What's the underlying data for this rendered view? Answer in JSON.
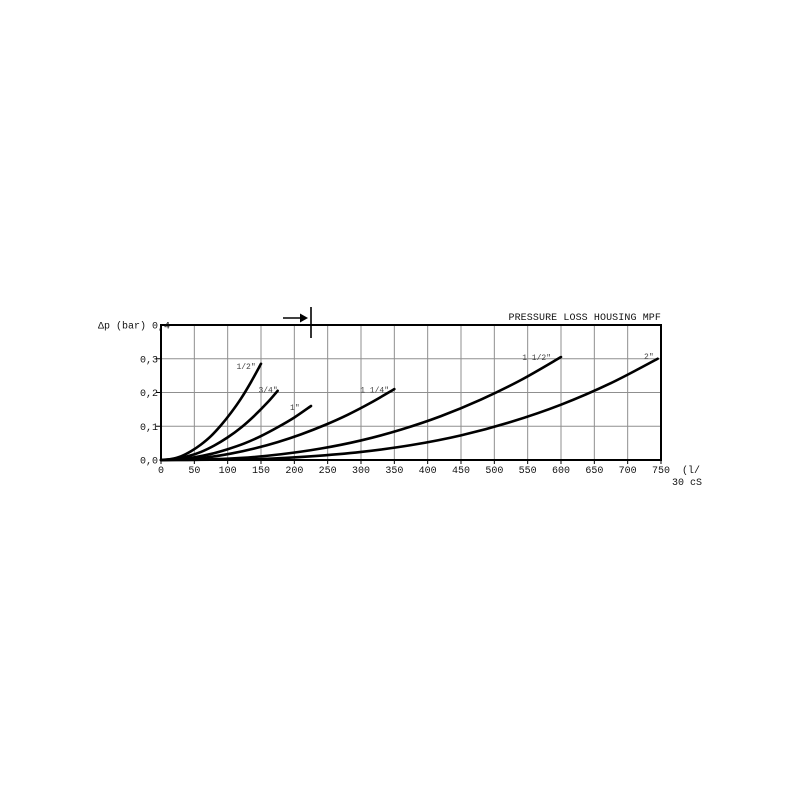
{
  "page": {
    "background": "#ffffff"
  },
  "chart_data": {
    "type": "line",
    "title": "PRESSURE LOSS HOUSING MPF",
    "ylabel": "Δp (bar)",
    "x_unit_note_line1": "(l/",
    "x_unit_note_line2": "30 cS",
    "xlim": [
      0,
      750
    ],
    "ylim": [
      0,
      0.4
    ],
    "grid": true,
    "legend_position": "inline-curve-labels",
    "x_ticks": [
      0,
      50,
      100,
      150,
      200,
      250,
      300,
      350,
      400,
      450,
      500,
      550,
      600,
      650,
      700,
      750
    ],
    "y_ticks": [
      {
        "v": 0.0,
        "label": "0,0"
      },
      {
        "v": 0.1,
        "label": "0,1"
      },
      {
        "v": 0.2,
        "label": "0,2"
      },
      {
        "v": 0.3,
        "label": "0,3"
      },
      {
        "v": 0.4,
        "label": "0,4"
      }
    ],
    "colors": {
      "curve": "#000000",
      "frame": "#000000",
      "grid": "#8f8f8f",
      "label": "#444444",
      "text": "#111111"
    },
    "marker": {
      "symbol": "flow-direction-arrow",
      "x": 225
    },
    "series": [
      {
        "id": "half-inch",
        "name": "1/2\"",
        "label_anchor": {
          "x": 142,
          "y": 0.27
        },
        "points": [
          [
            0,
            0
          ],
          [
            15,
            0.003
          ],
          [
            30,
            0.011
          ],
          [
            45,
            0.026
          ],
          [
            60,
            0.046
          ],
          [
            75,
            0.071
          ],
          [
            90,
            0.103
          ],
          [
            105,
            0.14
          ],
          [
            120,
            0.182
          ],
          [
            135,
            0.231
          ],
          [
            150,
            0.285
          ]
        ]
      },
      {
        "id": "three-quarter-inch",
        "name": "3/4\"",
        "label_anchor": {
          "x": 175,
          "y": 0.2
        },
        "points": [
          [
            0,
            0
          ],
          [
            20,
            0.003
          ],
          [
            40,
            0.011
          ],
          [
            60,
            0.024
          ],
          [
            80,
            0.043
          ],
          [
            100,
            0.067
          ],
          [
            120,
            0.096
          ],
          [
            140,
            0.131
          ],
          [
            160,
            0.171
          ],
          [
            175,
            0.205
          ]
        ]
      },
      {
        "id": "one-inch",
        "name": "1\"",
        "label_anchor": {
          "x": 208,
          "y": 0.148
        },
        "points": [
          [
            0,
            0
          ],
          [
            25,
            0.002
          ],
          [
            50,
            0.008
          ],
          [
            75,
            0.018
          ],
          [
            100,
            0.032
          ],
          [
            125,
            0.049
          ],
          [
            150,
            0.071
          ],
          [
            175,
            0.097
          ],
          [
            200,
            0.126
          ],
          [
            225,
            0.16
          ]
        ]
      },
      {
        "id": "one-and-quarter-inch",
        "name": "1 1/4\"",
        "label_anchor": {
          "x": 342,
          "y": 0.2
        },
        "points": [
          [
            0,
            0
          ],
          [
            35,
            0.002
          ],
          [
            70,
            0.008
          ],
          [
            105,
            0.019
          ],
          [
            140,
            0.034
          ],
          [
            175,
            0.053
          ],
          [
            210,
            0.076
          ],
          [
            245,
            0.103
          ],
          [
            280,
            0.134
          ],
          [
            315,
            0.17
          ],
          [
            350,
            0.21
          ]
        ]
      },
      {
        "id": "one-and-half-inch",
        "name": "1 1/2\"",
        "label_anchor": {
          "x": 585,
          "y": 0.296
        },
        "points": [
          [
            0,
            0
          ],
          [
            60,
            0.001
          ],
          [
            120,
            0.006
          ],
          [
            180,
            0.017
          ],
          [
            240,
            0.034
          ],
          [
            300,
            0.058
          ],
          [
            360,
            0.09
          ],
          [
            420,
            0.13
          ],
          [
            480,
            0.179
          ],
          [
            540,
            0.237
          ],
          [
            600,
            0.305
          ]
        ]
      },
      {
        "id": "two-inch",
        "name": "2\"",
        "label_anchor": {
          "x": 739,
          "y": 0.299
        },
        "points": [
          [
            0,
            0
          ],
          [
            75,
            0.001
          ],
          [
            150,
            0.003
          ],
          [
            225,
            0.011
          ],
          [
            300,
            0.024
          ],
          [
            375,
            0.044
          ],
          [
            450,
            0.073
          ],
          [
            525,
            0.113
          ],
          [
            600,
            0.164
          ],
          [
            675,
            0.228
          ],
          [
            745,
            0.3
          ]
        ]
      }
    ]
  }
}
